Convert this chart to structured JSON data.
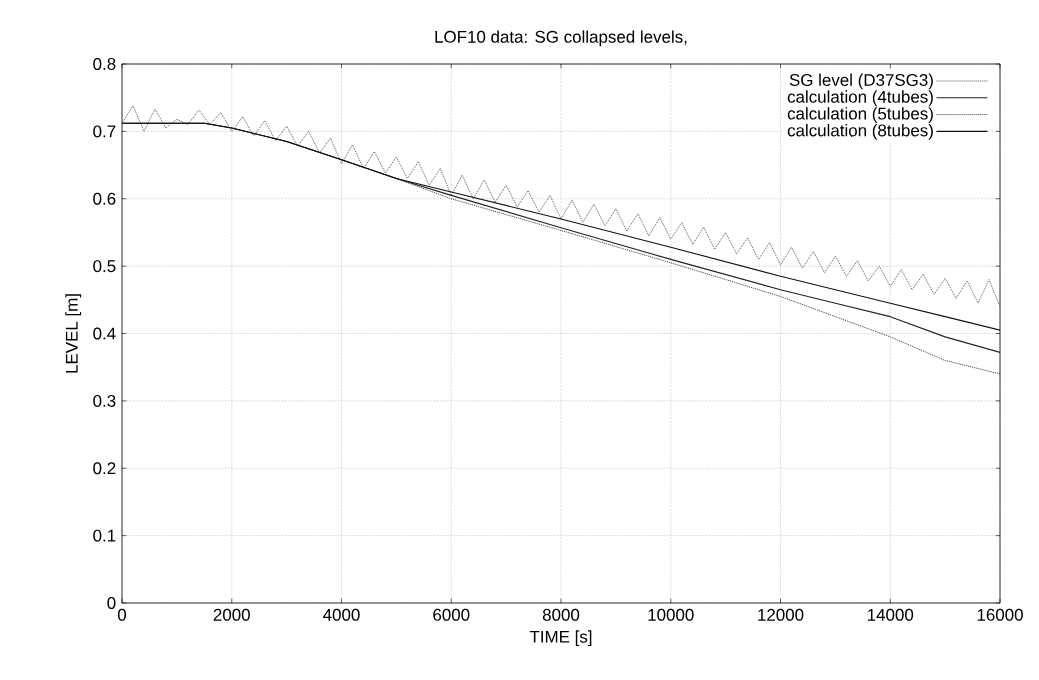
{
  "chart_data": {
    "type": "line",
    "title": "LOF10 data: SG collapsed levels,",
    "xlabel": "TIME [s]",
    "ylabel": "LEVEL [m]",
    "xlim": [
      0,
      16000
    ],
    "ylim": [
      0,
      0.8
    ],
    "xticks": [
      0,
      2000,
      4000,
      6000,
      8000,
      10000,
      12000,
      14000,
      16000
    ],
    "yticks": [
      0,
      0.1,
      0.2,
      0.3,
      0.4,
      0.5,
      0.6,
      0.7,
      0.8
    ],
    "grid": true,
    "legend": "top right",
    "marker": "none",
    "series": [
      {
        "name": "SG level (D37SG3)",
        "color": "#555555",
        "line_style": "dotted",
        "x": [
          0,
          200,
          400,
          600,
          800,
          1000,
          1200,
          1400,
          1600,
          1800,
          2000,
          2200,
          2400,
          2600,
          2800,
          3000,
          3200,
          3400,
          3600,
          3800,
          4000,
          4200,
          4400,
          4600,
          4800,
          5000,
          5200,
          5400,
          5600,
          5800,
          6000,
          6200,
          6400,
          6600,
          6800,
          7000,
          7200,
          7400,
          7600,
          7800,
          8000,
          8200,
          8400,
          8600,
          8800,
          9000,
          9200,
          9400,
          9600,
          9800,
          10000,
          10200,
          10400,
          10600,
          10800,
          11000,
          11200,
          11400,
          11600,
          11800,
          12000,
          12200,
          12400,
          12600,
          12800,
          13000,
          13200,
          13400,
          13600,
          13800,
          14000,
          14200,
          14400,
          14600,
          14800,
          15000,
          15200,
          15400,
          15600,
          15800,
          16000
        ],
        "values": [
          0.712,
          0.738,
          0.7,
          0.733,
          0.705,
          0.718,
          0.71,
          0.732,
          0.71,
          0.728,
          0.7,
          0.722,
          0.693,
          0.716,
          0.686,
          0.708,
          0.678,
          0.7,
          0.668,
          0.69,
          0.652,
          0.68,
          0.645,
          0.67,
          0.638,
          0.662,
          0.63,
          0.655,
          0.62,
          0.645,
          0.605,
          0.635,
          0.6,
          0.628,
          0.595,
          0.62,
          0.588,
          0.612,
          0.58,
          0.605,
          0.57,
          0.598,
          0.565,
          0.592,
          0.56,
          0.585,
          0.552,
          0.578,
          0.545,
          0.572,
          0.54,
          0.565,
          0.532,
          0.558,
          0.525,
          0.55,
          0.518,
          0.542,
          0.51,
          0.535,
          0.502,
          0.528,
          0.497,
          0.522,
          0.49,
          0.515,
          0.485,
          0.508,
          0.478,
          0.5,
          0.47,
          0.495,
          0.465,
          0.488,
          0.458,
          0.482,
          0.452,
          0.478,
          0.445,
          0.48,
          0.44
        ]
      },
      {
        "name": "calculation (4tubes)",
        "color": "#222222",
        "line_style": "solid",
        "x": [
          0,
          1500,
          2000,
          3000,
          4000,
          5000,
          6000,
          8000,
          10000,
          12000,
          13000,
          14000,
          15000,
          16000
        ],
        "values": [
          0.712,
          0.712,
          0.705,
          0.685,
          0.658,
          0.63,
          0.605,
          0.557,
          0.51,
          0.465,
          0.445,
          0.425,
          0.395,
          0.372
        ]
      },
      {
        "name": "calculation (5tubes)",
        "color": "#333333",
        "line_style": "dotted",
        "x": [
          0,
          1500,
          2000,
          3000,
          4000,
          5000,
          6000,
          8000,
          10000,
          12000,
          13000,
          14000,
          15000,
          16000
        ],
        "values": [
          0.712,
          0.712,
          0.705,
          0.685,
          0.658,
          0.63,
          0.6,
          0.553,
          0.505,
          0.455,
          0.425,
          0.395,
          0.36,
          0.34
        ]
      },
      {
        "name": "calculation (8tubes)",
        "color": "#111111",
        "line_style": "solid",
        "x": [
          0,
          1500,
          2000,
          3000,
          4000,
          5000,
          6000,
          8000,
          10000,
          12000,
          13000,
          14000,
          15000,
          16000
        ],
        "values": [
          0.712,
          0.712,
          0.705,
          0.685,
          0.658,
          0.63,
          0.61,
          0.57,
          0.528,
          0.485,
          0.465,
          0.445,
          0.425,
          0.405
        ]
      }
    ]
  }
}
